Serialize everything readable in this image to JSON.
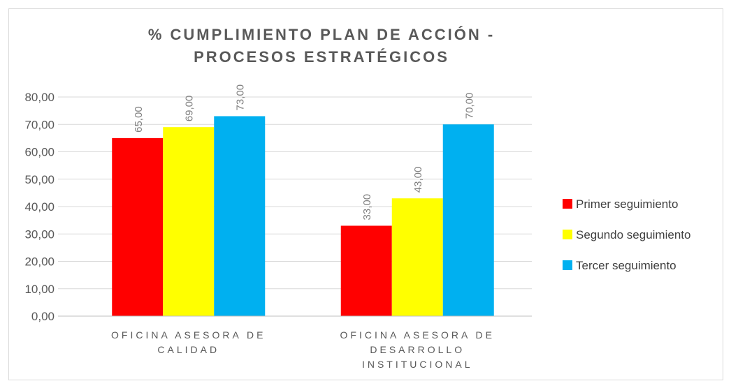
{
  "chart_data": {
    "type": "bar",
    "title": "% CUMPLIMIENTO PLAN DE ACCIÓN - PROCESOS ESTRATÉGICOS",
    "categories": [
      "OFICINA ASESORA DE CALIDAD",
      "OFICINA ASESORA DE DESARROLLO INSTITUCIONAL"
    ],
    "series": [
      {
        "name": "Primer seguimiento",
        "color": "#ff0000",
        "values": [
          65,
          33
        ],
        "value_labels": [
          "65,00",
          "33,00"
        ]
      },
      {
        "name": "Segundo seguimiento",
        "color": "#ffff00",
        "values": [
          69,
          43
        ],
        "value_labels": [
          "69,00",
          "43,00"
        ]
      },
      {
        "name": "Tercer seguimiento",
        "color": "#00b0f0",
        "values": [
          73,
          70
        ],
        "value_labels": [
          "73,00",
          "70,00"
        ]
      }
    ],
    "ylim": [
      0,
      80
    ],
    "yticks": [
      {
        "value": 0,
        "label": "0,00"
      },
      {
        "value": 10,
        "label": "10,00"
      },
      {
        "value": 20,
        "label": "20,00"
      },
      {
        "value": 30,
        "label": "30,00"
      },
      {
        "value": 40,
        "label": "40,00"
      },
      {
        "value": 50,
        "label": "50,00"
      },
      {
        "value": 60,
        "label": "60,00"
      },
      {
        "value": 70,
        "label": "70,00"
      },
      {
        "value": 80,
        "label": "80,00"
      }
    ],
    "grid": true,
    "legend": "right"
  }
}
